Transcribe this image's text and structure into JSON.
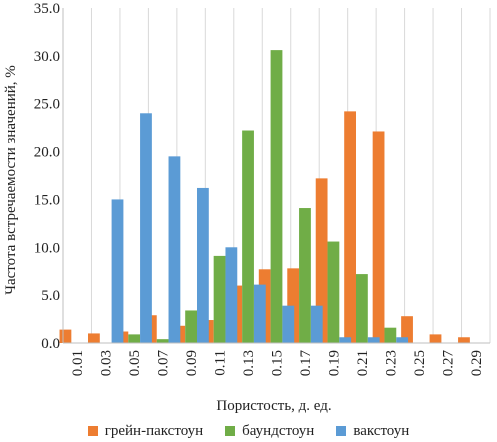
{
  "chart_data": {
    "type": "bar",
    "title": "",
    "xlabel": "Пористость, д. ед.",
    "ylabel": "Частота встречаемости  значений, %",
    "ylim": [
      0,
      35
    ],
    "yticks": [
      "0.0",
      "5.0",
      "10.0",
      "15.0",
      "20.0",
      "25.0",
      "30.0",
      "35.0"
    ],
    "grid": "vertical",
    "legend_position": "bottom",
    "categories": [
      "0.01",
      "0.03",
      "0.05",
      "0.07",
      "0.09",
      "0.11",
      "0.13",
      "0.15",
      "0.17",
      "0.19",
      "0.21",
      "0.23",
      "0.25",
      "0.27",
      "0.29"
    ],
    "series": [
      {
        "name": "грейн-пакстоун",
        "color": "#ED7D31",
        "values": [
          1.4,
          1.0,
          1.2,
          2.9,
          1.8,
          2.4,
          6.0,
          7.7,
          7.8,
          17.2,
          24.2,
          22.1,
          2.8,
          0.9,
          0.6
        ]
      },
      {
        "name": "баундстоун",
        "color": "#70AD47",
        "values": [
          0,
          0,
          0.9,
          0.4,
          3.4,
          9.1,
          22.2,
          30.6,
          14.1,
          10.6,
          7.2,
          1.6,
          0,
          0,
          0
        ]
      },
      {
        "name": "вакстоун",
        "color": "#5B9BD5",
        "values": [
          0,
          15.0,
          24.0,
          19.5,
          16.2,
          10.0,
          6.1,
          3.9,
          3.9,
          0.6,
          0.6,
          0.6,
          0,
          0,
          0
        ]
      }
    ]
  }
}
